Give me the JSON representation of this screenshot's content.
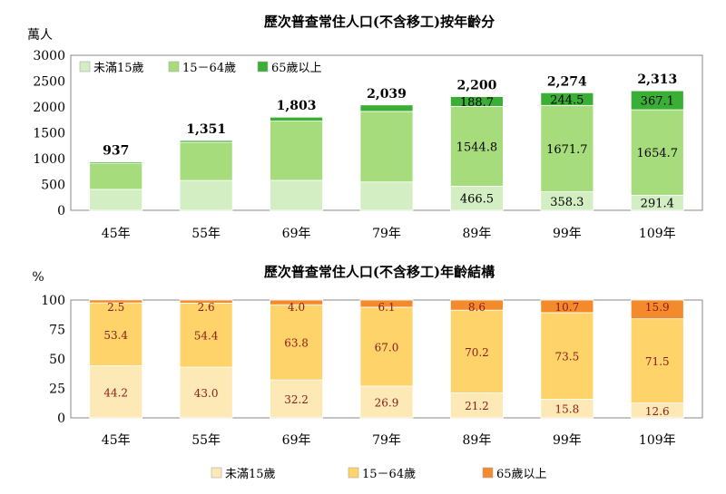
{
  "chart_data": [
    {
      "type": "bar",
      "title": "歷次普查常住人口(不含移工)按年齡分",
      "ylabel": "萬人",
      "ylim": [
        0,
        3000
      ],
      "yticks": [
        "0",
        "500",
        "1000",
        "1500",
        "2000",
        "2500",
        "3000"
      ],
      "categories": [
        "45年",
        "55年",
        "69年",
        "79年",
        "89年",
        "99年",
        "109年"
      ],
      "totals": [
        "937",
        "1,351",
        "1,803",
        "2,039",
        "2,200",
        "2,274",
        "2,313"
      ],
      "series": [
        {
          "name": "未滿15歲",
          "color": "#d2eec2",
          "values": [
            405,
            577,
            579,
            548,
            466.5,
            358.3,
            291.4
          ],
          "labels": [
            "",
            "",
            "",
            "",
            "466.5",
            "358.3",
            "291.4"
          ]
        },
        {
          "name": "15－64歲",
          "color": "#a7dc7c",
          "values": [
            506,
            739,
            1148,
            1366,
            1544.8,
            1671.7,
            1654.7
          ],
          "labels": [
            "",
            "",
            "",
            "",
            "1544.8",
            "1671.7",
            "1654.7"
          ]
        },
        {
          "name": "65歲以上",
          "color": "#3aae35",
          "values": [
            26,
            35,
            76,
            125,
            188.7,
            244.5,
            367.1
          ],
          "labels": [
            "",
            "",
            "",
            "",
            "188.7",
            "244.5",
            "367.1"
          ]
        }
      ],
      "legend": "top-left"
    },
    {
      "type": "bar",
      "title": "歷次普查常住人口(不含移工)年齡結構",
      "ylabel": "%",
      "ylim": [
        0,
        100
      ],
      "yticks": [
        "0",
        "25",
        "50",
        "75",
        "100"
      ],
      "categories": [
        "45年",
        "55年",
        "69年",
        "79年",
        "89年",
        "99年",
        "109年"
      ],
      "series": [
        {
          "name": "未滿15歲",
          "color": "#fde9b5",
          "values": [
            44.2,
            43.0,
            32.2,
            26.9,
            21.2,
            15.8,
            12.6
          ],
          "labels": [
            "44.2",
            "43.0",
            "32.2",
            "26.9",
            "21.2",
            "15.8",
            "12.6"
          ]
        },
        {
          "name": "15－64歲",
          "color": "#fdd36a",
          "values": [
            53.4,
            54.4,
            63.8,
            67.0,
            70.2,
            73.5,
            71.5
          ],
          "labels": [
            "53.4",
            "54.4",
            "63.8",
            "67.0",
            "70.2",
            "73.5",
            "71.5"
          ]
        },
        {
          "name": "65歲以上",
          "color": "#f38b2c",
          "values": [
            2.5,
            2.6,
            4.0,
            6.1,
            8.6,
            10.7,
            15.9
          ],
          "labels": [
            "2.5",
            "2.6",
            "4.0",
            "6.1",
            "8.6",
            "10.7",
            "15.9"
          ]
        }
      ],
      "legend": "bottom"
    }
  ]
}
